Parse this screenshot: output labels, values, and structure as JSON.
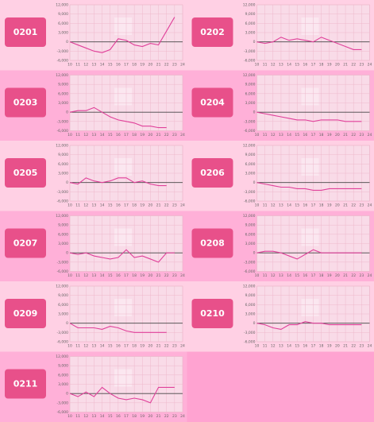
{
  "chart_data": [
    {
      "type": "line",
      "title": "0201",
      "color": "#e0409a",
      "x": [
        10,
        11,
        12,
        13,
        14,
        15,
        16,
        17,
        18,
        19,
        20,
        21,
        22,
        23
      ],
      "values": [
        0,
        -1000,
        -2000,
        -3000,
        -3500,
        -2500,
        1000,
        500,
        -1000,
        -1500,
        -500,
        -1000,
        3500,
        8000
      ],
      "xlim": [
        10,
        24
      ],
      "xticks": [
        10,
        11,
        12,
        13,
        14,
        15,
        16,
        17,
        18,
        19,
        20,
        21,
        22,
        23,
        24
      ],
      "ylim": [
        -6000,
        12000
      ],
      "yticks": [
        {
          "value": -6000,
          "label": "-6,000"
        },
        {
          "value": -3000,
          "label": "-3,000"
        },
        0,
        {
          "value": 3000,
          "label": "3,000"
        },
        {
          "value": 6000,
          "label": "6,000"
        },
        {
          "value": 9000,
          "label": "9,000"
        },
        {
          "value": 12000,
          "label": "12,000"
        }
      ],
      "grid": true
    },
    {
      "type": "line",
      "title": "0202",
      "color": "#e0409a",
      "x": [
        10,
        11,
        12,
        13,
        14,
        15,
        16,
        17,
        18,
        19,
        20,
        21,
        22,
        23
      ],
      "values": [
        0,
        -500,
        0,
        1500,
        500,
        1000,
        500,
        0,
        1500,
        500,
        -500,
        -1500,
        -2500,
        -2500
      ],
      "xlim": [
        10,
        24
      ],
      "xticks": [
        10,
        11,
        12,
        13,
        14,
        15,
        16,
        17,
        18,
        19,
        20,
        21,
        22,
        23,
        24
      ],
      "ylim": [
        -6000,
        12000
      ],
      "yticks": [
        {
          "value": -6000,
          "label": "-6,000"
        },
        {
          "value": -3000,
          "label": "-3,000"
        },
        0,
        {
          "value": 3000,
          "label": "3,000"
        },
        {
          "value": 6000,
          "label": "6,000"
        },
        {
          "value": 9000,
          "label": "9,000"
        },
        {
          "value": 12000,
          "label": "12,000"
        }
      ],
      "grid": true
    },
    {
      "type": "line",
      "title": "0203",
      "color": "#e0409a",
      "x": [
        10,
        11,
        12,
        13,
        14,
        15,
        16,
        17,
        18,
        19,
        20,
        21,
        22,
        23
      ],
      "values": [
        0,
        500,
        500,
        1500,
        0,
        -1500,
        -2500,
        -3000,
        -3500,
        -4500,
        -4500,
        -5000,
        -5000,
        null
      ],
      "xlim": [
        10,
        24
      ],
      "xticks": [
        10,
        11,
        12,
        13,
        14,
        15,
        16,
        17,
        18,
        19,
        20,
        21,
        22,
        23,
        24
      ],
      "ylim": [
        -6000,
        12000
      ],
      "yticks": [
        {
          "value": -6000,
          "label": "-6,000"
        },
        {
          "value": -3000,
          "label": "-3,000"
        },
        0,
        {
          "value": 3000,
          "label": "3,000"
        },
        {
          "value": 6000,
          "label": "6,000"
        },
        {
          "value": 9000,
          "label": "9,000"
        },
        {
          "value": 12000,
          "label": "12,000"
        }
      ],
      "grid": true
    },
    {
      "type": "line",
      "title": "0204",
      "color": "#e0409a",
      "x": [
        10,
        11,
        12,
        13,
        14,
        15,
        16,
        17,
        18,
        19,
        20,
        21,
        22,
        23
      ],
      "values": [
        0,
        -500,
        -1000,
        -1500,
        -2000,
        -2500,
        -2500,
        -3000,
        -2500,
        -2500,
        -2500,
        -3000,
        -3000,
        -3000
      ],
      "xlim": [
        10,
        24
      ],
      "xticks": [
        10,
        11,
        12,
        13,
        14,
        15,
        16,
        17,
        18,
        19,
        20,
        21,
        22,
        23,
        24
      ],
      "ylim": [
        -6000,
        12000
      ],
      "yticks": [
        {
          "value": -6000,
          "label": "-6,000"
        },
        {
          "value": -3000,
          "label": "-3,000"
        },
        0,
        {
          "value": 3000,
          "label": "3,000"
        },
        {
          "value": 6000,
          "label": "6,000"
        },
        {
          "value": 9000,
          "label": "9,000"
        },
        {
          "value": 12000,
          "label": "12,000"
        }
      ],
      "grid": true
    },
    {
      "type": "line",
      "title": "0205",
      "color": "#e0409a",
      "x": [
        10,
        11,
        12,
        13,
        14,
        15,
        16,
        17,
        18,
        19,
        20,
        21,
        22,
        23
      ],
      "values": [
        0,
        -500,
        1500,
        500,
        0,
        500,
        1500,
        1500,
        0,
        500,
        -500,
        -1000,
        -1000,
        null
      ],
      "xlim": [
        10,
        24
      ],
      "xticks": [
        10,
        11,
        12,
        13,
        14,
        15,
        16,
        17,
        18,
        19,
        20,
        21,
        22,
        23,
        24
      ],
      "ylim": [
        -6000,
        12000
      ],
      "yticks": [
        {
          "value": -6000,
          "label": "-6,000"
        },
        {
          "value": -3000,
          "label": "-3,000"
        },
        0,
        {
          "value": 3000,
          "label": "3,000"
        },
        {
          "value": 6000,
          "label": "6,000"
        },
        {
          "value": 9000,
          "label": "9,000"
        },
        {
          "value": 12000,
          "label": "12,000"
        }
      ],
      "grid": true
    },
    {
      "type": "line",
      "title": "0206",
      "color": "#e0409a",
      "x": [
        10,
        11,
        12,
        13,
        14,
        15,
        16,
        17,
        18,
        19,
        20,
        21,
        22,
        23
      ],
      "values": [
        0,
        -500,
        -1000,
        -1500,
        -1500,
        -2000,
        -2000,
        -2500,
        -2500,
        -2000,
        -2000,
        -2000,
        -2000,
        -2000
      ],
      "xlim": [
        10,
        24
      ],
      "xticks": [
        10,
        11,
        12,
        13,
        14,
        15,
        16,
        17,
        18,
        19,
        20,
        21,
        22,
        23,
        24
      ],
      "ylim": [
        -6000,
        12000
      ],
      "yticks": [
        {
          "value": -6000,
          "label": "-6,000"
        },
        {
          "value": -3000,
          "label": "-3,000"
        },
        0,
        {
          "value": 3000,
          "label": "3,000"
        },
        {
          "value": 6000,
          "label": "6,000"
        },
        {
          "value": 9000,
          "label": "9,000"
        },
        {
          "value": 12000,
          "label": "12,000"
        }
      ],
      "grid": true
    },
    {
      "type": "line",
      "title": "0207",
      "color": "#e0409a",
      "x": [
        10,
        11,
        12,
        13,
        14,
        15,
        16,
        17,
        18,
        19,
        20,
        21,
        22,
        23
      ],
      "values": [
        0,
        -500,
        0,
        -1000,
        -1500,
        -2000,
        -1500,
        1000,
        -1500,
        -1000,
        -2000,
        -3000,
        0,
        0
      ],
      "xlim": [
        10,
        24
      ],
      "xticks": [
        10,
        11,
        12,
        13,
        14,
        15,
        16,
        17,
        18,
        19,
        20,
        21,
        22,
        23,
        24
      ],
      "ylim": [
        -6000,
        12000
      ],
      "yticks": [
        {
          "value": -6000,
          "label": "-6,000"
        },
        {
          "value": -3000,
          "label": "-3,000"
        },
        0,
        {
          "value": 3000,
          "label": "3,000"
        },
        {
          "value": 6000,
          "label": "6,000"
        },
        {
          "value": 9000,
          "label": "9,000"
        },
        {
          "value": 12000,
          "label": "12,000"
        }
      ],
      "grid": true
    },
    {
      "type": "line",
      "title": "0208",
      "color": "#e0409a",
      "x": [
        10,
        11,
        12,
        13,
        14,
        15,
        16,
        17,
        18,
        19,
        20,
        21,
        22,
        23
      ],
      "values": [
        0,
        500,
        500,
        0,
        -1000,
        -2000,
        -500,
        1000,
        0,
        0,
        0,
        0,
        0,
        0
      ],
      "xlim": [
        10,
        24
      ],
      "xticks": [
        10,
        11,
        12,
        13,
        14,
        15,
        16,
        17,
        18,
        19,
        20,
        21,
        22,
        23,
        24
      ],
      "ylim": [
        -6000,
        12000
      ],
      "yticks": [
        {
          "value": -6000,
          "label": "-6,000"
        },
        {
          "value": -3000,
          "label": "-3,000"
        },
        0,
        {
          "value": 3000,
          "label": "3,000"
        },
        {
          "value": 6000,
          "label": "6,000"
        },
        {
          "value": 9000,
          "label": "9,000"
        },
        {
          "value": 12000,
          "label": "12,000"
        }
      ],
      "grid": true
    },
    {
      "type": "line",
      "title": "0209",
      "color": "#e0409a",
      "x": [
        10,
        11,
        12,
        13,
        14,
        15,
        16,
        17,
        18,
        19,
        20,
        21,
        22,
        23
      ],
      "values": [
        0,
        -1500,
        -1500,
        -1500,
        -2000,
        -1000,
        -1500,
        -2500,
        -3000,
        -3000,
        -3000,
        -3000,
        -3000,
        null
      ],
      "xlim": [
        10,
        24
      ],
      "xticks": [
        10,
        11,
        12,
        13,
        14,
        15,
        16,
        17,
        18,
        19,
        20,
        21,
        22,
        23,
        24
      ],
      "ylim": [
        -6000,
        12000
      ],
      "yticks": [
        {
          "value": -6000,
          "label": "-6,000"
        },
        {
          "value": -3000,
          "label": "-3,000"
        },
        0,
        {
          "value": 3000,
          "label": "3,000"
        },
        {
          "value": 6000,
          "label": "6,000"
        },
        {
          "value": 9000,
          "label": "9,000"
        },
        {
          "value": 12000,
          "label": "12,000"
        }
      ],
      "grid": true
    },
    {
      "type": "line",
      "title": "0210",
      "color": "#e0409a",
      "x": [
        10,
        11,
        12,
        13,
        14,
        15,
        16,
        17,
        18,
        19,
        20,
        21,
        22,
        23
      ],
      "values": [
        0,
        -500,
        -1500,
        -2000,
        -500,
        -500,
        500,
        0,
        0,
        -500,
        -500,
        -500,
        -500,
        -500
      ],
      "xlim": [
        10,
        24
      ],
      "xticks": [
        10,
        11,
        12,
        13,
        14,
        15,
        16,
        17,
        18,
        19,
        20,
        21,
        22,
        23,
        24
      ],
      "ylim": [
        -6000,
        12000
      ],
      "yticks": [
        {
          "value": -6000,
          "label": "-6,000"
        },
        {
          "value": -3000,
          "label": "-3,000"
        },
        0,
        {
          "value": 3000,
          "label": "3,000"
        },
        {
          "value": 6000,
          "label": "6,000"
        },
        {
          "value": 9000,
          "label": "9,000"
        },
        {
          "value": 12000,
          "label": "12,000"
        }
      ],
      "grid": true
    },
    {
      "type": "line",
      "title": "0211",
      "color": "#e0409a",
      "x": [
        10,
        11,
        12,
        13,
        14,
        15,
        16,
        17,
        18,
        19,
        20,
        21,
        22,
        23
      ],
      "values": [
        0,
        -1000,
        500,
        -1000,
        2000,
        0,
        -1500,
        -2000,
        -1500,
        -2000,
        -3000,
        2000,
        2000,
        2000
      ],
      "xlim": [
        10,
        24
      ],
      "xticks": [
        10,
        11,
        12,
        13,
        14,
        15,
        16,
        17,
        18,
        19,
        20,
        21,
        22,
        23,
        24
      ],
      "ylim": [
        -6000,
        12000
      ],
      "yticks": [
        {
          "value": -6000,
          "label": "-6,000"
        },
        {
          "value": -3000,
          "label": "-3,000"
        },
        0,
        {
          "value": 3000,
          "label": "3,000"
        },
        {
          "value": 6000,
          "label": "6,000"
        },
        {
          "value": 9000,
          "label": "9,000"
        },
        {
          "value": 12000,
          "label": "12,000"
        }
      ],
      "grid": true
    }
  ]
}
